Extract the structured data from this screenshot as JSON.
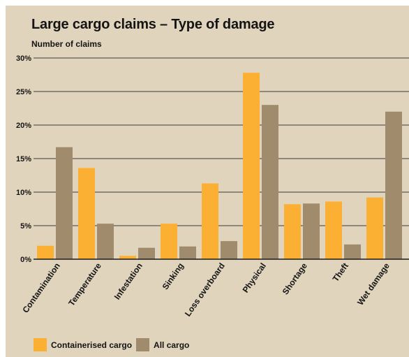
{
  "chart_data": {
    "type": "bar",
    "title": "Large cargo claims – Type of damage",
    "ylabel": "Number of claims",
    "categories": [
      "Contamination",
      "Temperature",
      "Infestation",
      "Sinking",
      "Loss overboard",
      "Physical",
      "Shortage",
      "Theft",
      "Wet damage"
    ],
    "series": [
      {
        "name": "Containerised cargo",
        "color": "#fbb034",
        "values": [
          2.0,
          13.6,
          0.5,
          5.3,
          11.3,
          27.8,
          8.2,
          8.6,
          9.2
        ]
      },
      {
        "name": "All cargo",
        "color": "#a08c6c",
        "values": [
          16.7,
          5.3,
          1.7,
          1.9,
          2.7,
          23.0,
          8.3,
          2.2,
          22.0
        ]
      }
    ],
    "yticks": [
      "0%",
      "5%",
      "10%",
      "15%",
      "20%",
      "25%",
      "30%"
    ],
    "ylim": [
      0,
      30
    ],
    "grid": true,
    "legend_position": "bottom-left"
  }
}
